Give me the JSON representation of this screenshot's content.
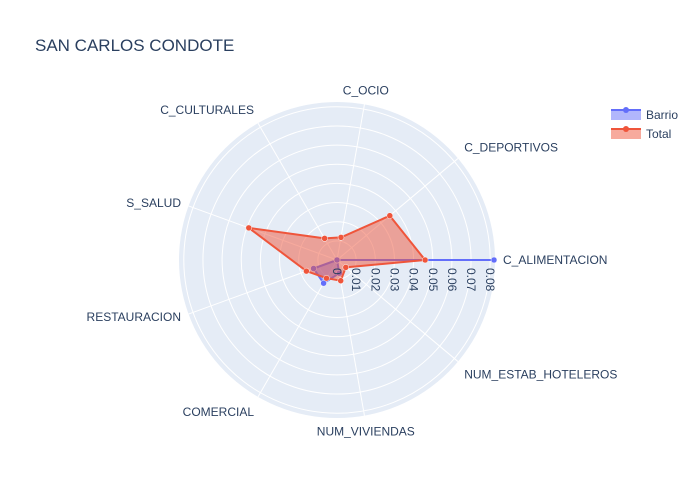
{
  "chart_data": {
    "type": "radar",
    "title": "SAN CARLOS CONDOTE",
    "categories": [
      "C_ALIMENTACION",
      "C_DEPORTIVOS",
      "C_OCIO",
      "C_CULTURALES",
      "S_SALUD",
      "RESTAURACION",
      "COMERCIAL",
      "NUM_VIVIENDAS",
      "NUM_ESTAB_HOTELEROS"
    ],
    "radial_ticks": [
      "0",
      "0.01",
      "0.02",
      "0.03",
      "0.04",
      "0.05",
      "0.06",
      "0.07",
      "0.08"
    ],
    "radial_range": [
      0,
      0.0825
    ],
    "series": [
      {
        "name": "Barrio",
        "color": "#636efa",
        "values": [
          0.082,
          0.0,
          0.0,
          0.0,
          0.0,
          0.013,
          0.014,
          0.007,
          0.0
        ]
      },
      {
        "name": "Total",
        "color": "#ef553b",
        "values": [
          0.046,
          0.036,
          0.012,
          0.013,
          0.049,
          0.017,
          0.011,
          0.011,
          0.006
        ]
      }
    ],
    "legend_position": "top-right",
    "grid": true
  }
}
